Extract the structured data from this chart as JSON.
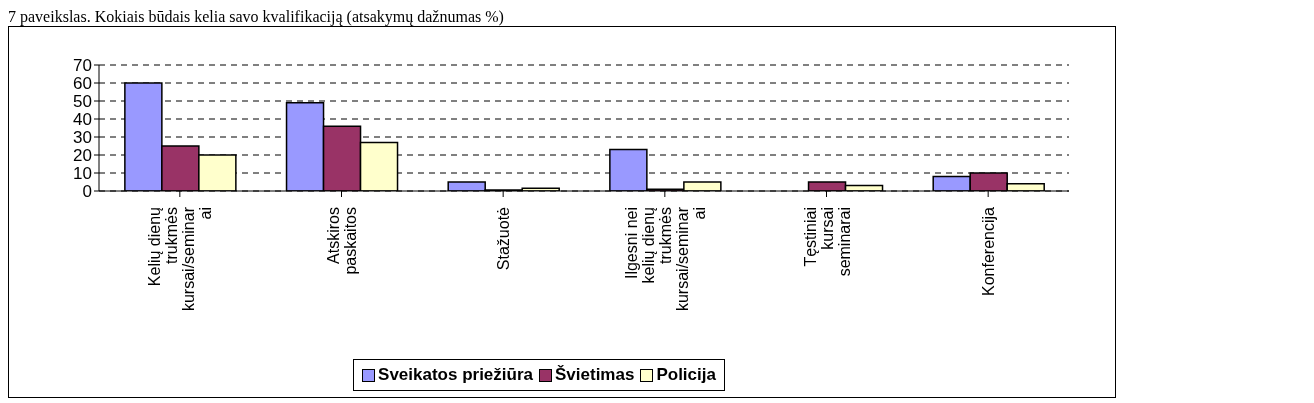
{
  "chart_data": {
    "type": "bar",
    "title": "7 paveikslas. Kokiais būdais kelia savo kvalifikaciją (atsakymų dažnumas %)",
    "categories": [
      "Kelių dienų\ntrukmės\nkursai/seminar\nai",
      "Atskiros\npaskaitos",
      "Stažuotė",
      "Ilgesni nei\nkelių dienų\ntrukmės\nkursai/seminar\nai",
      "Tęstiniai\nkursai\nseminarai",
      "Konferencija"
    ],
    "series": [
      {
        "name": "Sveikatos priežiūra",
        "color": "#9999ff",
        "values": [
          60,
          49,
          5,
          23,
          0,
          8
        ]
      },
      {
        "name": "Švietimas",
        "color": "#993366",
        "values": [
          25,
          36,
          0.5,
          1,
          5,
          10
        ]
      },
      {
        "name": "Policija",
        "color": "#ffffcc",
        "values": [
          20,
          27,
          1.5,
          5,
          3,
          4
        ]
      }
    ],
    "ylim": [
      0,
      70
    ],
    "yticks": [
      0,
      10,
      20,
      30,
      40,
      50,
      60,
      70
    ],
    "grid": "y",
    "legend": "bottom"
  }
}
